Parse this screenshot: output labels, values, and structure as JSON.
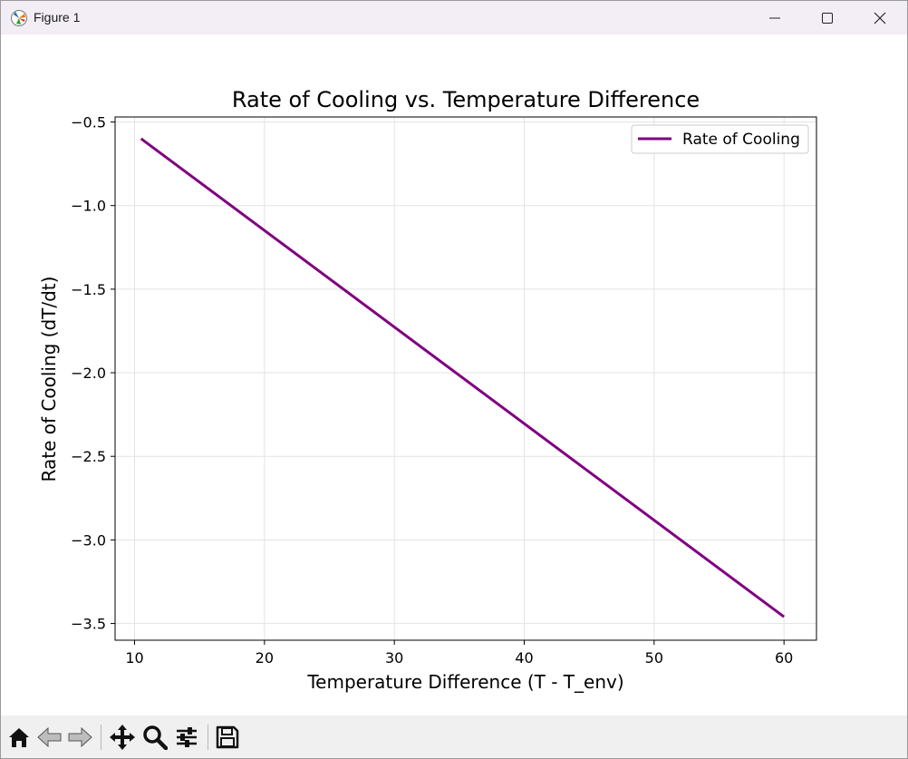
{
  "window": {
    "title": "Figure 1",
    "icons": [
      "app-icon",
      "minimize-icon",
      "maximize-icon",
      "close-icon"
    ]
  },
  "toolbar": {
    "tools": [
      "home-icon",
      "back-arrow-icon",
      "forward-arrow-icon",
      "pan-icon",
      "zoom-icon",
      "configure-subplots-icon",
      "save-icon"
    ]
  },
  "chart_data": {
    "type": "line",
    "title": "Rate of Cooling vs. Temperature Difference",
    "xlabel": "Temperature Difference (T - T_env)",
    "ylabel": "Rate of Cooling (dT/dt)",
    "xlim": [
      8.5,
      62.5
    ],
    "ylim": [
      -3.6,
      -0.47
    ],
    "xticks": [
      10,
      20,
      30,
      40,
      50,
      60
    ],
    "yticks": [
      -0.5,
      -1.0,
      -1.5,
      -2.0,
      -2.5,
      -3.0,
      -3.5
    ],
    "xtick_labels": [
      "10",
      "20",
      "30",
      "40",
      "50",
      "60"
    ],
    "ytick_labels": [
      "−0.5",
      "−1.0",
      "−1.5",
      "−2.0",
      "−2.5",
      "−3.0",
      "−3.5"
    ],
    "grid": true,
    "legend_position": "top-right",
    "series": [
      {
        "name": "Rate of Cooling",
        "color": "#800080",
        "x": [
          10.5,
          60.0
        ],
        "y": [
          -0.6,
          -3.46
        ]
      }
    ]
  }
}
